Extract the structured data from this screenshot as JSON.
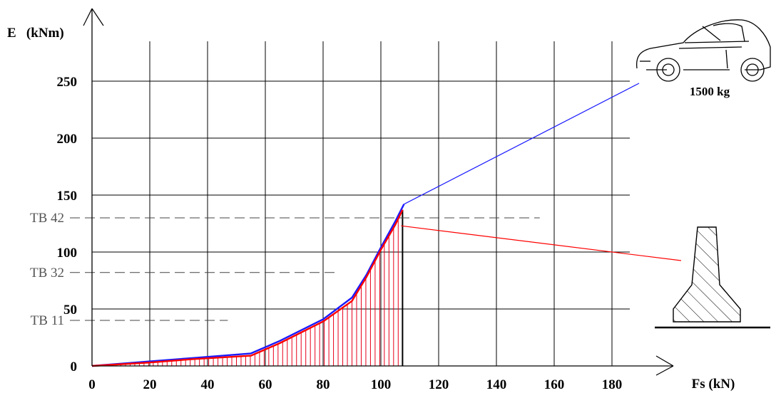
{
  "chart_data": {
    "type": "area",
    "xlabel": "Fs (kN)",
    "ylabel": "E   (kNm)",
    "xlim": [
      0,
      185
    ],
    "ylim": [
      0,
      265
    ],
    "x_ticks": [
      0,
      20,
      40,
      60,
      80,
      100,
      120,
      140,
      160,
      180
    ],
    "y_ticks": [
      0,
      50,
      100,
      150,
      200,
      250
    ],
    "x_tick_labels": [
      "0",
      "20",
      "40",
      "60",
      "80",
      "100",
      "120",
      "140",
      "160",
      "180"
    ],
    "y_tick_labels": [
      "0",
      "50",
      "100",
      "150",
      "200",
      "250"
    ],
    "grid": true,
    "series": [
      {
        "name": "",
        "color": "#1a1aff",
        "x": [
          0,
          20,
          35,
          55,
          65,
          80,
          90,
          95,
          100,
          105,
          108
        ],
        "y": [
          0,
          4,
          7,
          11,
          22,
          41,
          60,
          80,
          104,
          127,
          142
        ]
      },
      {
        "name": "",
        "color": "#ff0000",
        "x": [
          0,
          20,
          35,
          55,
          65,
          80,
          90,
          95,
          100,
          105,
          107.5
        ],
        "y": [
          0,
          3,
          6,
          9,
          20,
          39,
          57,
          78,
          102,
          124,
          137
        ]
      }
    ],
    "hatch_color": "#e8001c",
    "reference_lines": [
      {
        "label": "TB 42",
        "y": 130,
        "x_end": 155
      },
      {
        "label": "TB 32",
        "y": 82,
        "x_end": 85
      },
      {
        "label": "TB 11",
        "y": 40,
        "x_end": 47
      }
    ],
    "annotations": [
      {
        "label": "1500 kg",
        "target": "car",
        "line_color": "#1a1aff",
        "from": [
          108,
          142
        ]
      },
      {
        "label": "",
        "target": "barrier",
        "line_color": "#ff0000",
        "from": [
          107,
          123
        ]
      }
    ]
  }
}
